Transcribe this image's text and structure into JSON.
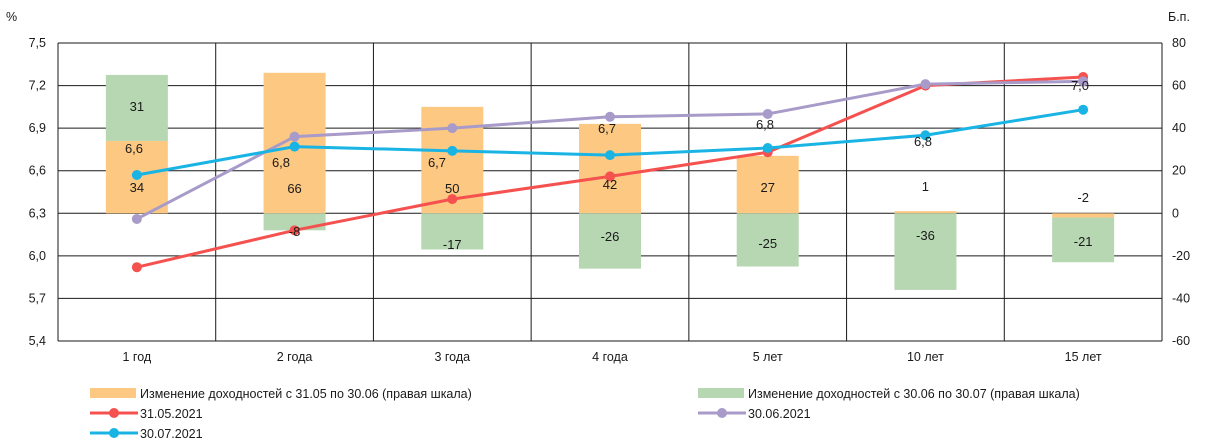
{
  "chart_data": {
    "type": "bar+line",
    "categories": [
      "1 год",
      "2 года",
      "3 года",
      "4 года",
      "5 лет",
      "10 лет",
      "15 лет"
    ],
    "left_axis": {
      "label": "%",
      "min": 5.4,
      "max": 7.5,
      "ticks": [
        "7,5",
        "7,2",
        "6,9",
        "6,6",
        "6,3",
        "6,0",
        "5,7",
        "5,4"
      ]
    },
    "right_axis": {
      "label": "Б.п.",
      "min": -60,
      "max": 80,
      "ticks": [
        "80",
        "60",
        "40",
        "20",
        "0",
        "-20",
        "-40",
        "-60"
      ]
    },
    "bar_series": [
      {
        "name": "Изменение доходностей с 31.05 по 30.06 (правая шкала)",
        "color": "#fdc882",
        "values": [
          34,
          66,
          50,
          42,
          27,
          1,
          -2
        ],
        "labels": [
          "34",
          "66",
          "50",
          "42",
          "27",
          "1",
          "-2"
        ]
      },
      {
        "name": "Изменение доходностей с 30.06 по 30.07 (правая шкала)",
        "color": "#b6d7b2",
        "values": [
          31,
          -8,
          -17,
          -26,
          -25,
          -36,
          -21
        ],
        "labels": [
          "31",
          "-8",
          "-17",
          "-26",
          "-25",
          "-36",
          "-21"
        ]
      }
    ],
    "line_series": [
      {
        "name": "31.05.2021",
        "color": "#f4514f",
        "values": [
          5.92,
          6.18,
          6.4,
          6.56,
          6.73,
          7.2,
          7.26
        ]
      },
      {
        "name": "30.06.2021",
        "color": "#a89bc9",
        "values": [
          6.26,
          6.84,
          6.9,
          6.98,
          7.0,
          7.21,
          7.23
        ]
      },
      {
        "name": "30.07.2021",
        "color": "#1ab4e4",
        "values": [
          6.57,
          6.77,
          6.74,
          6.71,
          6.76,
          6.85,
          7.03
        ]
      }
    ],
    "value_labels": [
      "6,6",
      "6,8",
      "6,7",
      "6,7",
      "6,8",
      "6,8",
      "7,0"
    ],
    "grid": true,
    "legend_position": "bottom"
  }
}
